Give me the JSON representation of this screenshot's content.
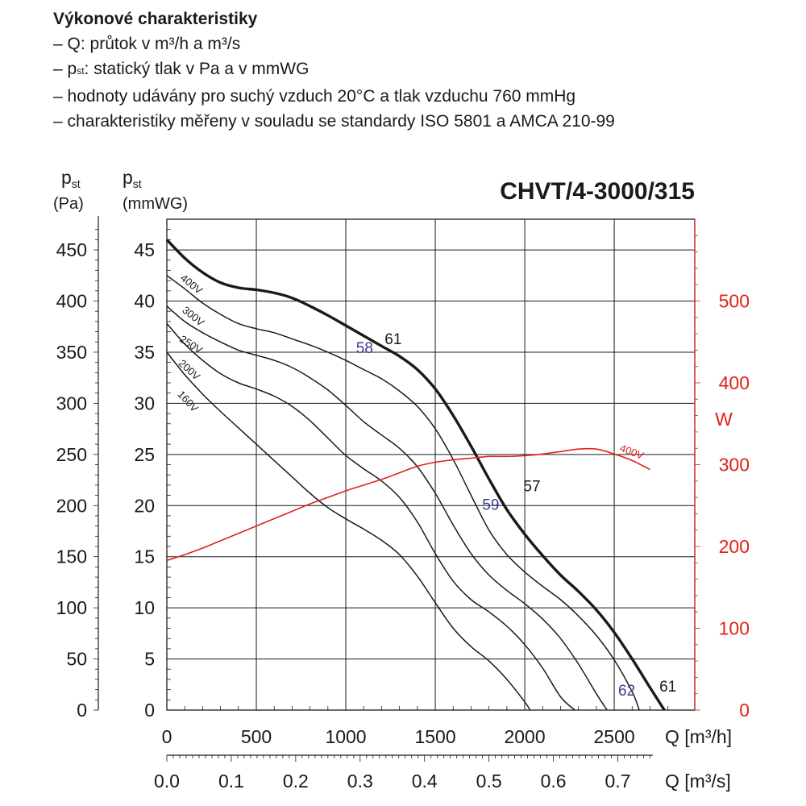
{
  "header": {
    "title": "Výkonové charakteristiky",
    "line_1_pre": "– Q: průtok v m³/h a m³/s",
    "line_2_p": "– p",
    "line_2_sub": "st",
    "line_2_rest": ": statický tlak v Pa a v mmWG",
    "line_3": "– hodnoty udávány pro suchý vzduch 20°C a tlak vzduchu 760 mmHg",
    "line_4": "– charakteristiky měřeny v souladu se standardy ISO 5801 a AMCA 210-99"
  },
  "chart_data": {
    "type": "line",
    "title": "CHVT/4-3000/315",
    "axes": {
      "y_left_outer": {
        "label_p": "p",
        "label_sub": "st",
        "unit": "(Pa)",
        "range": [
          0,
          480
        ],
        "ticks": [
          0,
          50,
          100,
          150,
          200,
          250,
          300,
          350,
          400,
          450
        ]
      },
      "y_left_inner": {
        "label_p": "p",
        "label_sub": "st",
        "unit": "(mmWG)",
        "range": [
          0,
          48
        ],
        "ticks": [
          0,
          5,
          10,
          15,
          20,
          25,
          30,
          35,
          40,
          45
        ]
      },
      "y_right": {
        "label": "W",
        "range": [
          0,
          600
        ],
        "ticks": [
          0,
          100,
          200,
          300,
          400,
          500
        ]
      },
      "x_bottom_m3h": {
        "label": "Q [m³/h]",
        "range": [
          0,
          2950
        ],
        "ticks": [
          0,
          500,
          1000,
          1500,
          2000,
          2500
        ]
      },
      "x_bottom_m3s": {
        "label": "Q [m³/s]",
        "ticks": [
          "0.0",
          "0.1",
          "0.2",
          "0.3",
          "0.4",
          "0.5",
          "0.6",
          "0.7"
        ],
        "tick_values": [
          0,
          0.1,
          0.2,
          0.3,
          0.4,
          0.5,
          0.6,
          0.7
        ]
      },
      "grid": true
    },
    "series": [
      {
        "name": "400V",
        "bold": true,
        "x": [
          0,
          100,
          200,
          300,
          400,
          500,
          600,
          700,
          800,
          900,
          1000,
          1100,
          1200,
          1300,
          1400,
          1500,
          1600,
          1700,
          1800,
          1900,
          2000,
          2100,
          2200,
          2300,
          2400,
          2500,
          2600,
          2700,
          2780
        ],
        "y": [
          46,
          44.2,
          42.8,
          41.8,
          41.3,
          41.1,
          40.8,
          40.3,
          39.5,
          38.6,
          37.6,
          36.6,
          35.6,
          34.6,
          33.3,
          31.4,
          28.8,
          25.8,
          22.6,
          19.6,
          17.2,
          15.1,
          13.2,
          11.6,
          9.8,
          7.6,
          5,
          2.2,
          0
        ]
      },
      {
        "name": "300V",
        "x": [
          0,
          100,
          200,
          300,
          400,
          500,
          600,
          700,
          800,
          900,
          1000,
          1100,
          1200,
          1300,
          1400,
          1500,
          1600,
          1700,
          1800,
          1900,
          2000,
          2100,
          2200,
          2300,
          2400,
          2500,
          2600,
          2640
        ],
        "y": [
          42.5,
          41.2,
          39.8,
          38.7,
          37.8,
          37.3,
          36.9,
          36.3,
          35.7,
          35,
          34.2,
          33.3,
          32.4,
          31.2,
          29.7,
          27.5,
          24.5,
          21,
          17.6,
          15.2,
          13.5,
          12.1,
          10.8,
          9.2,
          7.3,
          4.9,
          1.8,
          0
        ]
      },
      {
        "name": "250V",
        "x": [
          0,
          100,
          200,
          300,
          400,
          500,
          600,
          700,
          800,
          900,
          1000,
          1100,
          1200,
          1300,
          1400,
          1500,
          1600,
          1700,
          1800,
          1900,
          2000,
          2100,
          2200,
          2300,
          2400,
          2460
        ],
        "y": [
          39.5,
          38,
          36.9,
          36,
          35.2,
          34.7,
          34.2,
          33.5,
          32.5,
          31.3,
          29.8,
          28.2,
          26.9,
          25.6,
          23.8,
          21.2,
          18.1,
          15.3,
          13.2,
          11.7,
          10.4,
          8.9,
          7,
          4.5,
          1.6,
          0
        ]
      },
      {
        "name": "200V",
        "x": [
          0,
          100,
          200,
          300,
          400,
          500,
          600,
          700,
          800,
          900,
          1000,
          1100,
          1200,
          1300,
          1400,
          1500,
          1600,
          1700,
          1800,
          1900,
          2000,
          2100,
          2200,
          2280
        ],
        "y": [
          37.8,
          35.8,
          34.2,
          32.9,
          32,
          31.4,
          30.7,
          29.7,
          28.3,
          26.6,
          24.9,
          23.6,
          22.4,
          20.8,
          18.4,
          15.3,
          12.6,
          10.8,
          9.6,
          8.2,
          6.4,
          4.1,
          1.3,
          0
        ]
      },
      {
        "name": "160V",
        "x": [
          0,
          100,
          200,
          300,
          400,
          500,
          600,
          700,
          800,
          900,
          1000,
          1100,
          1200,
          1300,
          1400,
          1500,
          1600,
          1700,
          1800,
          1900,
          2000,
          2030
        ],
        "y": [
          35,
          32.8,
          30.9,
          29.2,
          27.6,
          26,
          24.4,
          22.8,
          21.2,
          19.8,
          18.7,
          17.7,
          16.6,
          15.2,
          13.1,
          10.5,
          8,
          6.2,
          4.8,
          3,
          0.8,
          0
        ]
      },
      {
        "name": "400V",
        "axis": "power",
        "color": "#e32119",
        "x": [
          0,
          100,
          200,
          300,
          400,
          500,
          600,
          700,
          800,
          900,
          1000,
          1100,
          1200,
          1300,
          1400,
          1500,
          1600,
          1700,
          1800,
          1900,
          2000,
          2100,
          2200,
          2300,
          2400,
          2500,
          2600,
          2700
        ],
        "y": [
          183,
          190,
          198,
          207,
          216,
          225,
          234,
          243,
          252,
          260,
          268,
          275,
          282,
          290,
          298,
          303,
          306,
          308,
          310,
          310,
          311,
          313,
          316,
          319,
          319,
          313,
          305,
          294
        ]
      }
    ],
    "point_labels": [
      {
        "text": "61",
        "x": 1265,
        "y": 35.8,
        "color": "#1a1a1a"
      },
      {
        "text": "58",
        "x": 1105,
        "y": 34.9,
        "color": "#3b3b96"
      },
      {
        "text": "57",
        "x": 2040,
        "y": 21.4,
        "color": "#1a1a1a"
      },
      {
        "text": "59",
        "x": 1810,
        "y": 19.6,
        "color": "#3b3b96"
      },
      {
        "text": "62",
        "x": 2570,
        "y": 1.4,
        "color": "#3b3b96"
      },
      {
        "text": "61",
        "x": 2800,
        "y": 1.8,
        "color": "#1a1a1a"
      }
    ],
    "colors": {
      "curves": "#1a1a1a",
      "power": "#e32119",
      "efficiency_blue": "#3b3b96",
      "grid": "#1a1a1a"
    }
  }
}
